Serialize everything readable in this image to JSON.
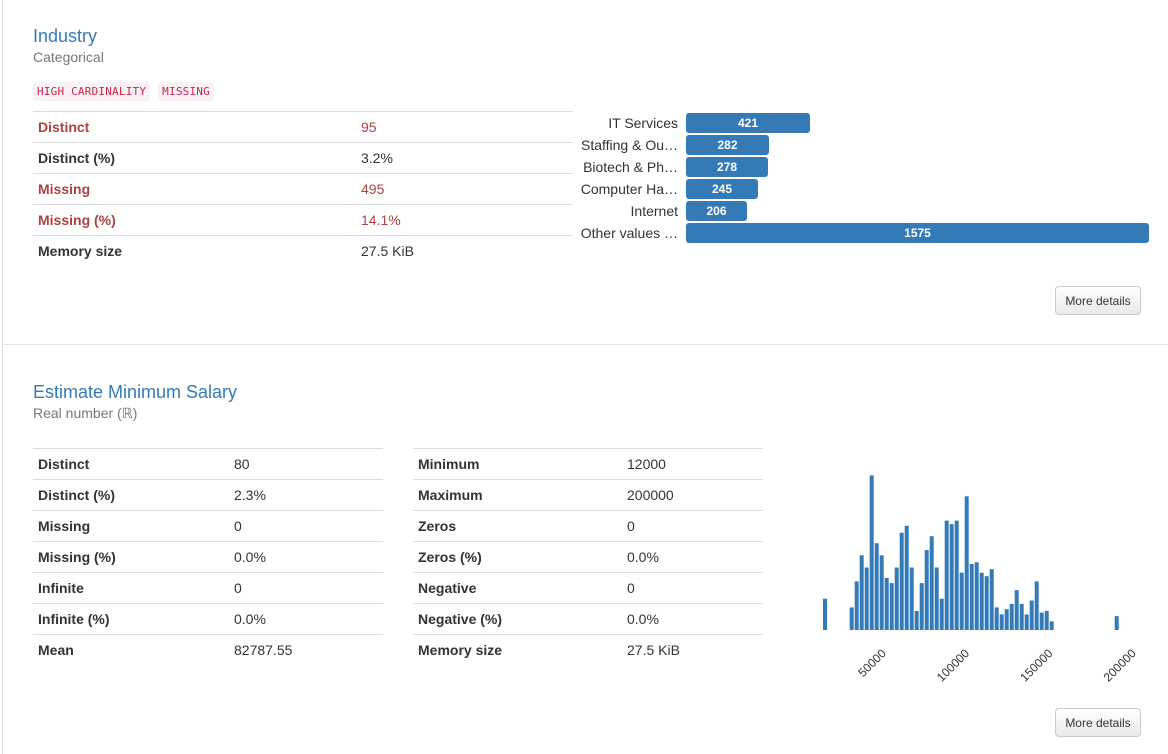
{
  "industry": {
    "title": "Industry",
    "subtitle": "Categorical",
    "badges": [
      "HIGH CARDINALITY",
      "MISSING"
    ],
    "stats": [
      {
        "label": "Distinct",
        "value": "95"
      },
      {
        "label": "Distinct (%)",
        "value": "3.2%"
      },
      {
        "label": "Missing",
        "value": "495"
      },
      {
        "label": "Missing (%)",
        "value": "14.1%"
      },
      {
        "label": "Memory size",
        "value": "27.5 KiB"
      }
    ],
    "frequencies": [
      {
        "label": "IT Services",
        "count": 421
      },
      {
        "label": "Staffing & Ou…",
        "count": 282
      },
      {
        "label": "Biotech & Ph…",
        "count": 278
      },
      {
        "label": "Computer Ha…",
        "count": 245
      },
      {
        "label": "Internet",
        "count": 206
      },
      {
        "label": "Other values …",
        "count": 1575
      }
    ],
    "more_details": "More details"
  },
  "salary": {
    "title": "Estimate Minimum Salary",
    "subtitle": "Real number (ℝ)",
    "stats_left": [
      {
        "label": "Distinct",
        "value": "80"
      },
      {
        "label": "Distinct (%)",
        "value": "2.3%"
      },
      {
        "label": "Missing",
        "value": "0"
      },
      {
        "label": "Missing (%)",
        "value": "0.0%"
      },
      {
        "label": "Infinite",
        "value": "0"
      },
      {
        "label": "Infinite (%)",
        "value": "0.0%"
      },
      {
        "label": "Mean",
        "value": "82787.55"
      }
    ],
    "stats_right": [
      {
        "label": "Minimum",
        "value": "12000"
      },
      {
        "label": "Maximum",
        "value": "200000"
      },
      {
        "label": "Zeros",
        "value": "0"
      },
      {
        "label": "Zeros (%)",
        "value": "0.0%"
      },
      {
        "label": "Negative",
        "value": "0"
      },
      {
        "label": "Negative (%)",
        "value": "0.0%"
      },
      {
        "label": "Memory size",
        "value": "27.5 KiB"
      }
    ],
    "more_details": "More details"
  },
  "chart_data": {
    "type": "bar",
    "bar_color": "#337ab7",
    "xlim": [
      10000,
      202000
    ],
    "xticks": [
      50000,
      100000,
      150000,
      200000
    ],
    "tick_labels": [
      "50000",
      "100000",
      "150000",
      "200000"
    ],
    "bin_centers": [
      13000,
      29000,
      32000,
      35000,
      38000,
      41000,
      44000,
      47000,
      50000,
      53000,
      56000,
      59000,
      62000,
      65000,
      68000,
      71000,
      74000,
      77000,
      80000,
      83000,
      86000,
      89000,
      92000,
      95000,
      98000,
      101000,
      104000,
      107000,
      110000,
      113000,
      116000,
      119000,
      122000,
      125000,
      128000,
      131000,
      134000,
      137000,
      140000,
      143000,
      146000,
      149000,
      188000
    ],
    "values": [
      18,
      13,
      28,
      43,
      36,
      89,
      50,
      43,
      30,
      27,
      36,
      56,
      60,
      36,
      11,
      27,
      46,
      54,
      36,
      18,
      63,
      61,
      63,
      33,
      77,
      38,
      39,
      33,
      31,
      35,
      13,
      9,
      12,
      15,
      23,
      15,
      9,
      17,
      28,
      10,
      11,
      5,
      8
    ],
    "ylim": [
      0,
      95
    ]
  }
}
